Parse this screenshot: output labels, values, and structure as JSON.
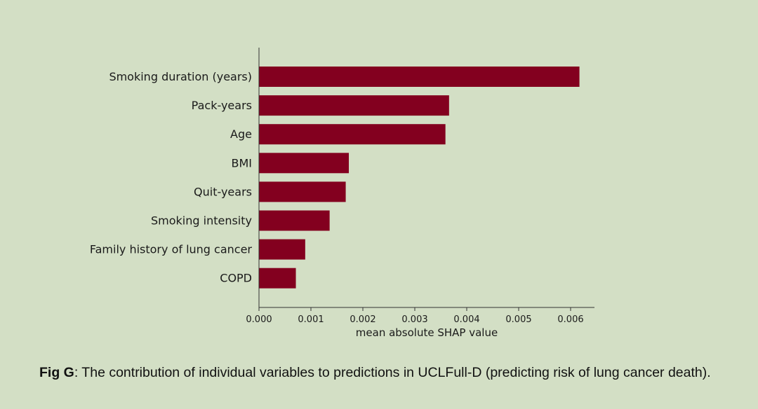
{
  "chart_data": {
    "type": "bar",
    "orientation": "horizontal",
    "categories": [
      "Smoking duration (years)",
      "Pack-years",
      "Age",
      "BMI",
      "Quit-years",
      "Smoking intensity",
      "Family history of lung cancer",
      "COPD"
    ],
    "values": [
      0.00617,
      0.00366,
      0.00359,
      0.00173,
      0.00167,
      0.00136,
      0.00089,
      0.00071
    ],
    "xlabel": "mean absolute SHAP value",
    "ylabel": "",
    "xlim": [
      0,
      0.0065
    ],
    "xticks": [
      "0.000",
      "0.001",
      "0.002",
      "0.003",
      "0.004",
      "0.005",
      "0.006"
    ],
    "xtick_values": [
      0,
      0.001,
      0.002,
      0.003,
      0.004,
      0.005,
      0.006
    ],
    "bar_color": "#83001f",
    "grid": false
  },
  "caption": {
    "label": "Fig G",
    "text": ": The contribution of individual variables to predictions in UCLFull-D (predicting risk of lung cancer death)."
  }
}
